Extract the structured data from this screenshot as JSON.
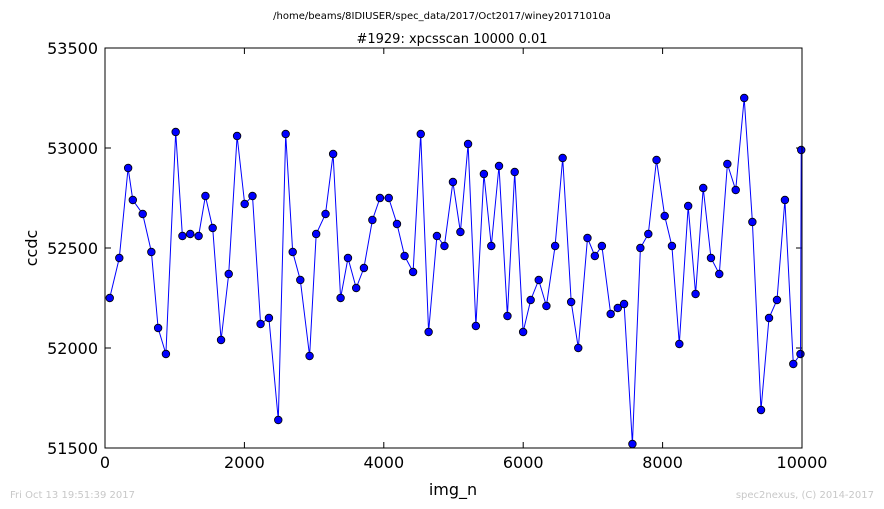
{
  "chart_data": {
    "type": "line",
    "suptitle": "/home/beams/8IDIUSER/spec_data/2017/Oct2017/winey20171010a",
    "title": "#1929: xpcsscan 10000 0.01",
    "xlabel": "img_n",
    "ylabel": "ccdc",
    "xlim": [
      0,
      10000
    ],
    "ylim": [
      51500,
      53500
    ],
    "xticks": [
      "0",
      "2000",
      "4000",
      "6000",
      "8000",
      "10000"
    ],
    "yticks": [
      "51500",
      "52000",
      "52500",
      "53000",
      "53500"
    ],
    "grid": false,
    "series": [
      {
        "color": "#0000ff",
        "marker": "circle",
        "x": [
          68,
          205,
          332,
          399,
          541,
          665,
          762,
          874,
          1014,
          1111,
          1223,
          1343,
          1441,
          1545,
          1665,
          1775,
          1895,
          2004,
          2116,
          2232,
          2352,
          2486,
          2592,
          2693,
          2802,
          2935,
          3030,
          3164,
          3273,
          3380,
          3486,
          3604,
          3715,
          3836,
          3945,
          4071,
          4189,
          4298,
          4420,
          4530,
          4643,
          4762,
          4870,
          4992,
          5099,
          5209,
          5321,
          5436,
          5542,
          5653,
          5774,
          5878,
          5999,
          6107,
          6223,
          6333,
          6458,
          6566,
          6688,
          6790,
          6922,
          7028,
          7129,
          7255,
          7357,
          7447,
          7567,
          7681,
          7795,
          7913,
          8030,
          8134,
          8240,
          8367,
          8473,
          8583,
          8694,
          8813,
          8929,
          9049,
          9171,
          9288,
          9412,
          9527,
          9641,
          9755,
          9875,
          9978,
          9989
        ],
        "y": [
          52250,
          52450,
          52900,
          52740,
          52670,
          52480,
          52100,
          51970,
          53080,
          52560,
          52570,
          52560,
          52760,
          52600,
          52040,
          52370,
          53060,
          52720,
          52760,
          52120,
          52150,
          51640,
          53070,
          52480,
          52340,
          51960,
          52570,
          52670,
          52970,
          52250,
          52450,
          52300,
          52400,
          52640,
          52750,
          52750,
          52620,
          52460,
          52380,
          53070,
          52080,
          52560,
          52510,
          52830,
          52580,
          53020,
          52110,
          52870,
          52510,
          52910,
          52160,
          52880,
          52080,
          52240,
          52340,
          52210,
          52510,
          52950,
          52230,
          52000,
          52550,
          52460,
          52510,
          52170,
          52200,
          52220,
          51520,
          52500,
          52570,
          52940,
          52660,
          52510,
          52020,
          52710,
          52270,
          52800,
          52450,
          52370,
          52920,
          52790,
          53250,
          52630,
          51690,
          52150,
          52240,
          52740,
          51920,
          51970,
          52990
        ]
      }
    ]
  },
  "footer": {
    "timestamp": "Fri Oct 13 19:51:39 2017",
    "credit": "spec2nexus, (C) 2014-2017"
  }
}
